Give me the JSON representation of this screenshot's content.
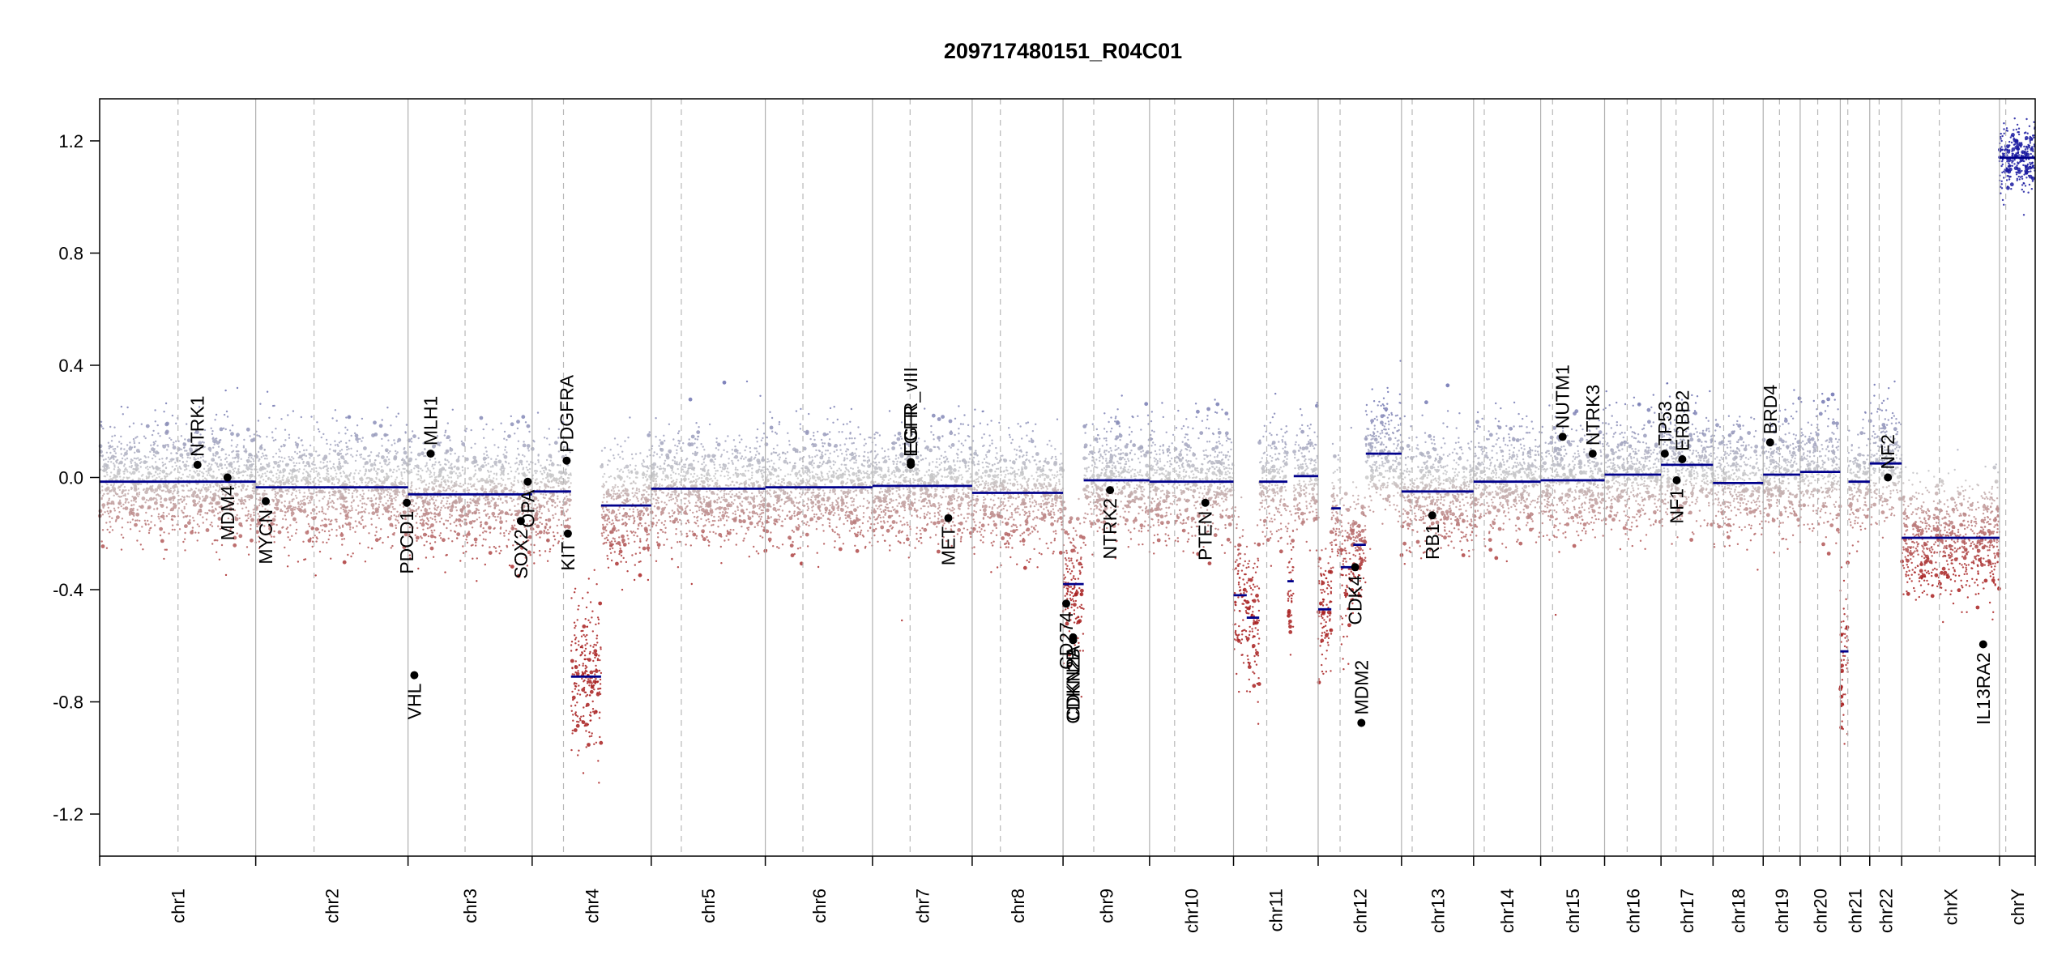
{
  "chart_data": {
    "type": "scatter",
    "title": "209717480151_R04C01",
    "xlabel": "",
    "ylabel": "",
    "ylim": [
      -1.35,
      1.35
    ],
    "yticks": [
      "1.2",
      "0.8",
      "0.4",
      "0.0",
      "-0.4",
      "-0.8",
      "-1.2"
    ],
    "ytick_values": [
      1.2,
      0.8,
      0.4,
      0.0,
      -0.4,
      -0.8,
      -1.2
    ],
    "colors": {
      "gain": "#6a6fb0",
      "loss": "#a82020",
      "neutral": "#c8c8c8",
      "segment": "#00008b",
      "gene_dot": "#000000"
    },
    "chromosomes": [
      {
        "name": "chr1",
        "start": 0,
        "end": 249,
        "centromere": 125
      },
      {
        "name": "chr2",
        "start": 249,
        "end": 492,
        "centromere": 93
      },
      {
        "name": "chr3",
        "start": 492,
        "end": 690,
        "centromere": 91
      },
      {
        "name": "chr4",
        "start": 690,
        "end": 880,
        "centromere": 50
      },
      {
        "name": "chr5",
        "start": 880,
        "end": 1062,
        "centromere": 48
      },
      {
        "name": "chr6",
        "start": 1062,
        "end": 1233,
        "centromere": 60
      },
      {
        "name": "chr7",
        "start": 1233,
        "end": 1392,
        "centromere": 60
      },
      {
        "name": "chr8",
        "start": 1392,
        "end": 1537,
        "centromere": 45
      },
      {
        "name": "chr9",
        "start": 1537,
        "end": 1675,
        "centromere": 49
      },
      {
        "name": "chr10",
        "start": 1675,
        "end": 1809,
        "centromere": 40
      },
      {
        "name": "chr11",
        "start": 1809,
        "end": 1944,
        "centromere": 53
      },
      {
        "name": "chr12",
        "start": 1944,
        "end": 2077,
        "centromere": 35
      },
      {
        "name": "chr13",
        "start": 2077,
        "end": 2192,
        "centromere": 17
      },
      {
        "name": "chr14",
        "start": 2192,
        "end": 2299,
        "centromere": 17
      },
      {
        "name": "chr15",
        "start": 2299,
        "end": 2401,
        "centromere": 19
      },
      {
        "name": "chr16",
        "start": 2401,
        "end": 2491,
        "centromere": 36
      },
      {
        "name": "chr17",
        "start": 2491,
        "end": 2574,
        "centromere": 24
      },
      {
        "name": "chr18",
        "start": 2574,
        "end": 2654,
        "centromere": 17
      },
      {
        "name": "chr19",
        "start": 2654,
        "end": 2713,
        "centromere": 26
      },
      {
        "name": "chr20",
        "start": 2713,
        "end": 2777,
        "centromere": 28
      },
      {
        "name": "chr21",
        "start": 2777,
        "end": 2824,
        "centromere": 12
      },
      {
        "name": "chr22",
        "start": 2824,
        "end": 2875,
        "centromere": 15
      },
      {
        "name": "chrX",
        "start": 2875,
        "end": 3031,
        "centromere": 60
      },
      {
        "name": "chrY",
        "start": 3031,
        "end": 3088,
        "centromere": 10
      }
    ],
    "segments": [
      [
        0,
        200,
        -0.015
      ],
      [
        200,
        249,
        -0.015
      ],
      [
        249,
        492,
        -0.035
      ],
      [
        492,
        615,
        -0.06
      ],
      [
        615,
        690,
        -0.06
      ],
      [
        690,
        752,
        -0.05
      ],
      [
        752,
        800,
        -0.71
      ],
      [
        800,
        880,
        -0.1
      ],
      [
        880,
        1062,
        -0.04
      ],
      [
        1062,
        1233,
        -0.035
      ],
      [
        1233,
        1392,
        -0.03
      ],
      [
        1392,
        1537,
        -0.055
      ],
      [
        1537,
        1570,
        -0.38
      ],
      [
        1570,
        1675,
        -0.01
      ],
      [
        1675,
        1809,
        -0.015
      ],
      [
        1809,
        1830,
        -0.42
      ],
      [
        1830,
        1850,
        -0.5
      ],
      [
        1850,
        1895,
        -0.015
      ],
      [
        1895,
        1905,
        -0.37
      ],
      [
        1905,
        1944,
        0.005
      ],
      [
        1944,
        1965,
        -0.47
      ],
      [
        1965,
        1980,
        -0.11
      ],
      [
        1980,
        2000,
        -0.32
      ],
      [
        2000,
        2020,
        -0.24
      ],
      [
        2020,
        2040,
        0.085
      ],
      [
        2040,
        2077,
        0.085
      ],
      [
        2077,
        2192,
        -0.05
      ],
      [
        2192,
        2299,
        -0.015
      ],
      [
        2299,
        2380,
        -0.01
      ],
      [
        2380,
        2401,
        -0.01
      ],
      [
        2401,
        2491,
        0.01
      ],
      [
        2491,
        2574,
        0.045
      ],
      [
        2574,
        2654,
        -0.02
      ],
      [
        2654,
        2690,
        0.01
      ],
      [
        2690,
        2713,
        0.01
      ],
      [
        2713,
        2777,
        0.02
      ],
      [
        2777,
        2790,
        -0.62
      ],
      [
        2790,
        2824,
        -0.015
      ],
      [
        2824,
        2875,
        0.05
      ],
      [
        2875,
        3031,
        -0.215
      ],
      [
        3031,
        3060,
        1.14
      ],
      [
        3060,
        3088,
        1.14
      ]
    ],
    "genes": [
      {
        "name": "NTRK1",
        "x": 156,
        "y": 0.045,
        "label_pos": "above"
      },
      {
        "name": "MDM4",
        "x": 204,
        "y": 0.0,
        "label_pos": "below"
      },
      {
        "name": "MYCN",
        "x": 265,
        "y": -0.085,
        "label_pos": "below"
      },
      {
        "name": "PDCD1",
        "x": 490,
        "y": -0.09,
        "label_pos": "below"
      },
      {
        "name": "VHL",
        "x": 502,
        "y": -0.705,
        "label_pos": "below"
      },
      {
        "name": "MLH1",
        "x": 528,
        "y": 0.085,
        "label_pos": "above"
      },
      {
        "name": "SOX2",
        "x": 672,
        "y": -0.155,
        "label_pos": "below"
      },
      {
        "name": "OPA",
        "x": 683,
        "y": -0.015,
        "label_pos": "below"
      },
      {
        "name": "PDGFRA",
        "x": 745,
        "y": 0.06,
        "label_pos": "above"
      },
      {
        "name": "KIT",
        "x": 747,
        "y": -0.2,
        "label_pos": "below"
      },
      {
        "name": "EGFR_vIII",
        "x": 1294,
        "y": 0.055,
        "label_pos": "above"
      },
      {
        "name": "EGFR",
        "x": 1294,
        "y": 0.045,
        "label_pos": "above"
      },
      {
        "name": "MET",
        "x": 1354,
        "y": -0.145,
        "label_pos": "below"
      },
      {
        "name": "CD274",
        "x": 1542,
        "y": -0.45,
        "label_pos": "below"
      },
      {
        "name": "CDKN2A",
        "x": 1553,
        "y": -0.57,
        "label_pos": "below"
      },
      {
        "name": "CDKN2B",
        "x": 1553,
        "y": -0.58,
        "label_pos": "below"
      },
      {
        "name": "NTRK2",
        "x": 1612,
        "y": -0.045,
        "label_pos": "below"
      },
      {
        "name": "PTEN",
        "x": 1764,
        "y": -0.09,
        "label_pos": "below"
      },
      {
        "name": "MDM2",
        "x": 2013,
        "y": -0.875,
        "label_pos": "above"
      },
      {
        "name": "CDK4",
        "x": 2003,
        "y": -0.32,
        "label_pos": "below"
      },
      {
        "name": "RB1",
        "x": 2126,
        "y": -0.135,
        "label_pos": "below"
      },
      {
        "name": "NUTM1",
        "x": 2334,
        "y": 0.145,
        "label_pos": "above"
      },
      {
        "name": "NTRK3",
        "x": 2382,
        "y": 0.085,
        "label_pos": "above"
      },
      {
        "name": "TP53",
        "x": 2497,
        "y": 0.085,
        "label_pos": "above"
      },
      {
        "name": "NF1",
        "x": 2516,
        "y": -0.01,
        "label_pos": "below"
      },
      {
        "name": "ERBB2",
        "x": 2525,
        "y": 0.065,
        "label_pos": "above"
      },
      {
        "name": "BRD4",
        "x": 2665,
        "y": 0.125,
        "label_pos": "above"
      },
      {
        "name": "NF2",
        "x": 2853,
        "y": 0.0,
        "label_pos": "above"
      },
      {
        "name": "IL13RA2",
        "x": 3005,
        "y": -0.595,
        "label_pos": "below"
      }
    ]
  }
}
